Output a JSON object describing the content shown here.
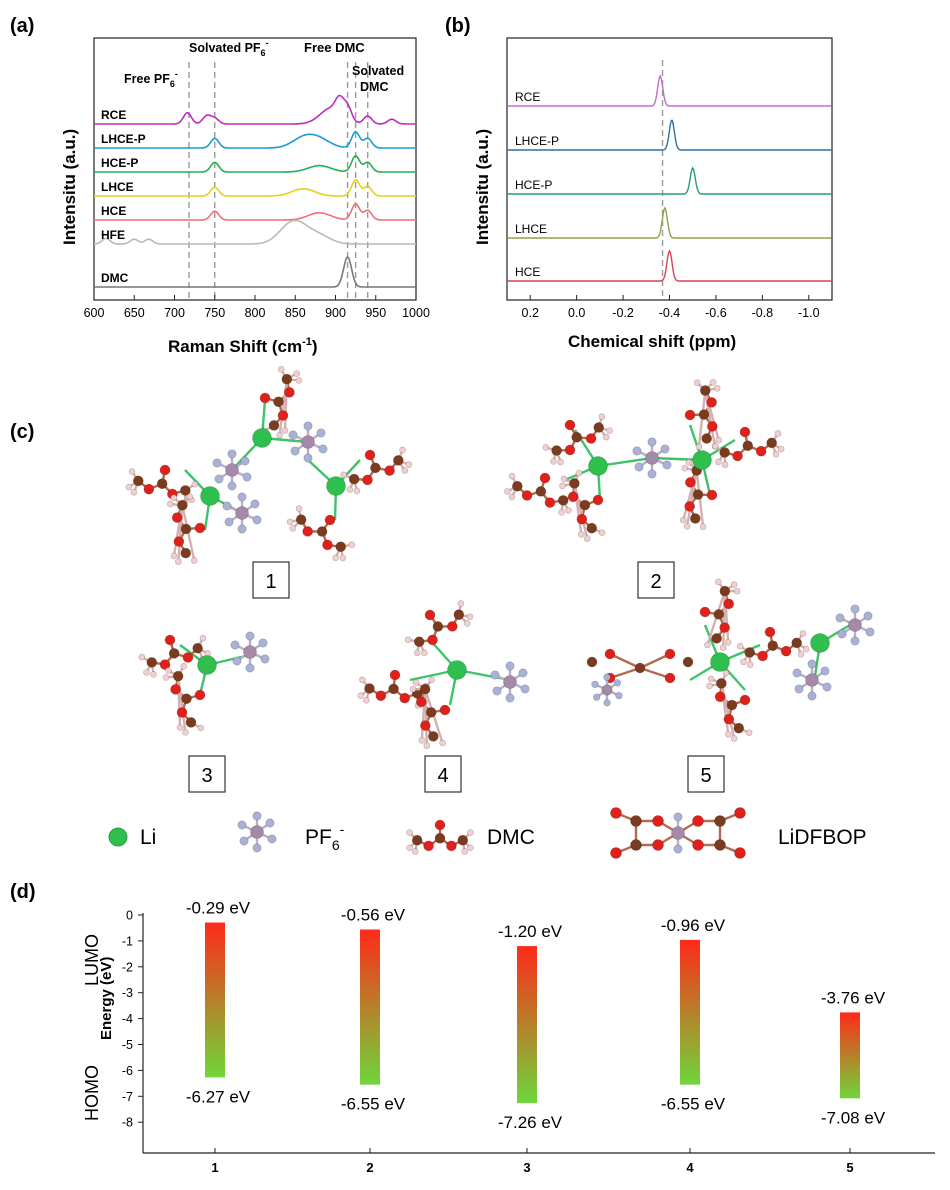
{
  "chart_data": [
    {
      "panel": "(a)",
      "type": "line",
      "xlabel": "Raman Shift (cm",
      "xlabel_sup": "-1",
      "xlabel_end": ")",
      "ylabel": "Intensitu (a.u.)",
      "xlim": [
        600,
        1000
      ],
      "xticks": [
        600,
        650,
        700,
        750,
        800,
        850,
        900,
        950,
        1000
      ],
      "grid": false,
      "annotations": {
        "free_pf6": "Free PF",
        "free_pf6_sub": "6",
        "free_pf6_sup": "-",
        "solvated_pf6": "Solvated PF",
        "solvated_pf6_sub": "6",
        "solvated_pf6_sup": "-",
        "free_dmc": "Free DMC",
        "solvated_dmc_1": "Solvated",
        "solvated_dmc_2": "DMC"
      },
      "reference_lines": [
        718,
        750,
        915,
        925,
        940
      ],
      "series": [
        {
          "name": "RCE",
          "color": "#c02cc0",
          "peaks": [
            [
              716,
              0.7
            ],
            [
              740,
              0.5
            ],
            [
              750,
              0.35
            ],
            [
              895,
              1.0
            ],
            [
              905,
              0.9
            ],
            [
              915,
              0.8
            ],
            [
              940,
              0.5
            ],
            [
              970,
              0.3
            ]
          ]
        },
        {
          "name": "LHCE-P",
          "color": "#1a9bd7",
          "peaks": [
            [
              750,
              0.6
            ],
            [
              860,
              0.6
            ],
            [
              880,
              0.5
            ],
            [
              925,
              1.0
            ],
            [
              940,
              0.6
            ]
          ]
        },
        {
          "name": "HCE-P",
          "color": "#22b24c",
          "peaks": [
            [
              750,
              0.6
            ],
            [
              880,
              0.4
            ],
            [
              925,
              1.0
            ],
            [
              940,
              0.6
            ]
          ]
        },
        {
          "name": "LHCE",
          "color": "#e3d11a",
          "peaks": [
            [
              750,
              0.55
            ],
            [
              860,
              0.45
            ],
            [
              925,
              1.0
            ],
            [
              940,
              0.6
            ]
          ]
        },
        {
          "name": "HCE",
          "color": "#ef6f72",
          "peaks": [
            [
              750,
              0.55
            ],
            [
              880,
              0.45
            ],
            [
              925,
              1.0
            ],
            [
              940,
              0.6
            ]
          ]
        },
        {
          "name": "HFE",
          "color": "#b9b9b9",
          "peaks": [
            [
              615,
              0.35
            ],
            [
              650,
              0.3
            ],
            [
              668,
              0.3
            ],
            [
              840,
              0.75
            ],
            [
              855,
              0.9
            ],
            [
              880,
              0.5
            ]
          ]
        },
        {
          "name": "DMC",
          "color": "#777777",
          "peaks": [
            [
              915,
              1.0
            ]
          ]
        }
      ]
    },
    {
      "panel": "(b)",
      "type": "line",
      "xlabel": "Chemical shift (ppm)",
      "ylabel": "Intensitu (a.u.)",
      "xlim": [
        0.3,
        -1.1
      ],
      "xticks": [
        0.2,
        0.0,
        -0.2,
        -0.4,
        -0.6,
        -0.8,
        -1.0
      ],
      "xtick_labels": [
        "0.2",
        "0.0",
        "-0.2",
        "-0.4",
        "-0.6",
        "-0.8",
        "-1.0"
      ],
      "reference_line": -0.37,
      "grid": false,
      "series": [
        {
          "name": "RCE",
          "color": "#c46ad0",
          "peak": -0.36
        },
        {
          "name": "LHCE-P",
          "color": "#2f6f9f",
          "peak": -0.41
        },
        {
          "name": "HCE-P",
          "color": "#20a070",
          "peak": -0.5
        },
        {
          "name": "LHCE",
          "color": "#8ea24a",
          "peak": -0.38
        },
        {
          "name": "HCE",
          "color": "#d9405a",
          "peak": -0.4
        }
      ]
    },
    {
      "panel": "(d)",
      "type": "bar",
      "ylabel": "Energy (eV)",
      "side_labels": {
        "lumo": "LUMO",
        "homo": "HOMO"
      },
      "ylim": [
        -8.5,
        0
      ],
      "yticks": [
        0,
        -1,
        -2,
        -3,
        -4,
        -5,
        -6,
        -7,
        -8
      ],
      "categories": [
        "1",
        "2",
        "3",
        "4",
        "5"
      ],
      "lumo": [
        -0.29,
        -0.56,
        -1.2,
        -0.96,
        -3.76
      ],
      "homo": [
        -6.27,
        -6.55,
        -7.26,
        -6.55,
        -7.08
      ],
      "lumo_labels": [
        "-0.29 eV",
        "-0.56 eV",
        "-1.20 eV",
        "-0.96 eV",
        "-3.76 eV"
      ],
      "homo_labels": [
        "-6.27 eV",
        "-6.55 eV",
        "-7.26 eV",
        "-6.55 eV",
        "-7.08 eV"
      ],
      "colors": {
        "top": "#ff2a1a",
        "bottom": "#6fd63a"
      }
    }
  ],
  "panel_c": {
    "label": "(c)",
    "clusters": [
      "1",
      "2",
      "3",
      "4",
      "5"
    ],
    "legend": {
      "li": "Li",
      "pf6": "PF",
      "pf6_sub": "6",
      "pf6_sup": "-",
      "dmc": "DMC",
      "lidfbop": "LiDFBOP"
    },
    "colors": {
      "li": "#2fbf4f",
      "p": "#a48aa8",
      "f": "#a9b2d6",
      "c": "#7a3b1e",
      "o": "#e0201a",
      "h": "#f1cfcf"
    }
  }
}
